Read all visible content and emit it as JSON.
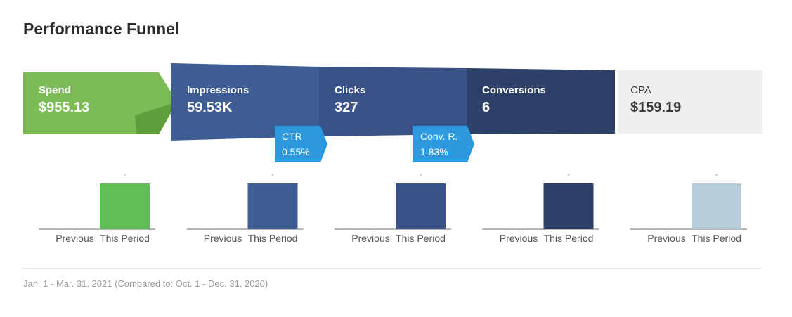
{
  "title": "Performance Funnel",
  "footer": "Jan. 1 - Mar. 31, 2021 (Compared to: Oct. 1 - Dec. 31, 2020)",
  "colors": {
    "spend": "#7dbb57",
    "spend_fold": "#5f9e3b",
    "impressions": "#3f5d95",
    "clicks": "#3a5288",
    "conversions": "#2c4068",
    "cpa_bg": "#eeeff1",
    "rate_badge": "#2d9ae0",
    "bar_spend": "#63bd57",
    "bar_impressions": "#3f5d95",
    "bar_clicks": "#3a5288",
    "bar_conversions": "#2c4068",
    "bar_cpa": "#b6cdd9",
    "baseline": "#6e6e6e"
  },
  "chart_data": {
    "type": "bar",
    "stages": [
      {
        "label": "Spend",
        "value": "$955.13"
      },
      {
        "label": "Impressions",
        "value": "59.53K"
      },
      {
        "label": "Clicks",
        "value": "327"
      },
      {
        "label": "Conversions",
        "value": "6"
      },
      {
        "label": "CPA",
        "value": "$159.19"
      }
    ],
    "rates": [
      {
        "label": "CTR",
        "value": "0.55%"
      },
      {
        "label": "Conv. R.",
        "value": "1.83%"
      }
    ],
    "comparison": {
      "categories": [
        "Previous",
        "This Period"
      ],
      "groups": [
        {
          "stage": "Spend",
          "values": [
            0,
            955.13
          ],
          "data_label": "-"
        },
        {
          "stage": "Impressions",
          "values": [
            0,
            59530
          ],
          "data_label": "-"
        },
        {
          "stage": "Clicks",
          "values": [
            0,
            327
          ],
          "data_label": "-"
        },
        {
          "stage": "Conversions",
          "values": [
            0,
            6
          ],
          "data_label": "-"
        },
        {
          "stage": "CPA",
          "values": [
            0,
            159.19
          ],
          "data_label": "-"
        }
      ]
    }
  }
}
